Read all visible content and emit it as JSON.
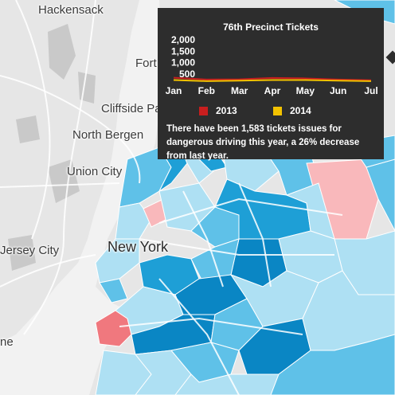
{
  "map": {
    "colors": {
      "water": "#f2f2f2",
      "land": "#e6e6e6",
      "road": "#ffffff",
      "park": "#c9c9c9",
      "precinct_light": "#aee0f3",
      "precinct_mid": "#5fc1e8",
      "precinct_dark": "#1e9fd6",
      "precinct_deep": "#0a86c4",
      "precinct_highlight": "#f0787e",
      "precinct_pink": "#f9b8bb"
    },
    "labels": {
      "hackensack": "Hackensack",
      "fort": "Fort",
      "cliffside": "Cliffside Pa",
      "north_bergen": "North Bergen",
      "union_city": "Union City",
      "jersey_city": "Jersey City",
      "new_york": "New York",
      "edge": "ne"
    }
  },
  "panel": {
    "title": "76th Precinct Tickets",
    "legend": [
      {
        "label": "2013",
        "color": "#c81e1e"
      },
      {
        "label": "2014",
        "color": "#f2c200"
      }
    ],
    "summary": "There have been 1,583 tickets issues for dangerous driving this year, a 26% decrease from last year."
  },
  "chart_data": {
    "type": "line",
    "title": "76th Precinct Tickets",
    "x": [
      "Jan",
      "Feb",
      "Mar",
      "Apr",
      "May",
      "Jun",
      "Jul"
    ],
    "ylim": [
      0,
      2000
    ],
    "yticks": [
      "2,000",
      "1,500",
      "1,000",
      "500"
    ],
    "ytick_values": [
      2000,
      1500,
      1000,
      500
    ],
    "series": [
      {
        "name": "2013",
        "color": "#c81e1e",
        "values": [
          330,
          250,
          260,
          320,
          300,
          250,
          220
        ]
      },
      {
        "name": "2014",
        "color": "#f2c200",
        "values": [
          230,
          180,
          200,
          230,
          230,
          200,
          180
        ]
      }
    ]
  }
}
